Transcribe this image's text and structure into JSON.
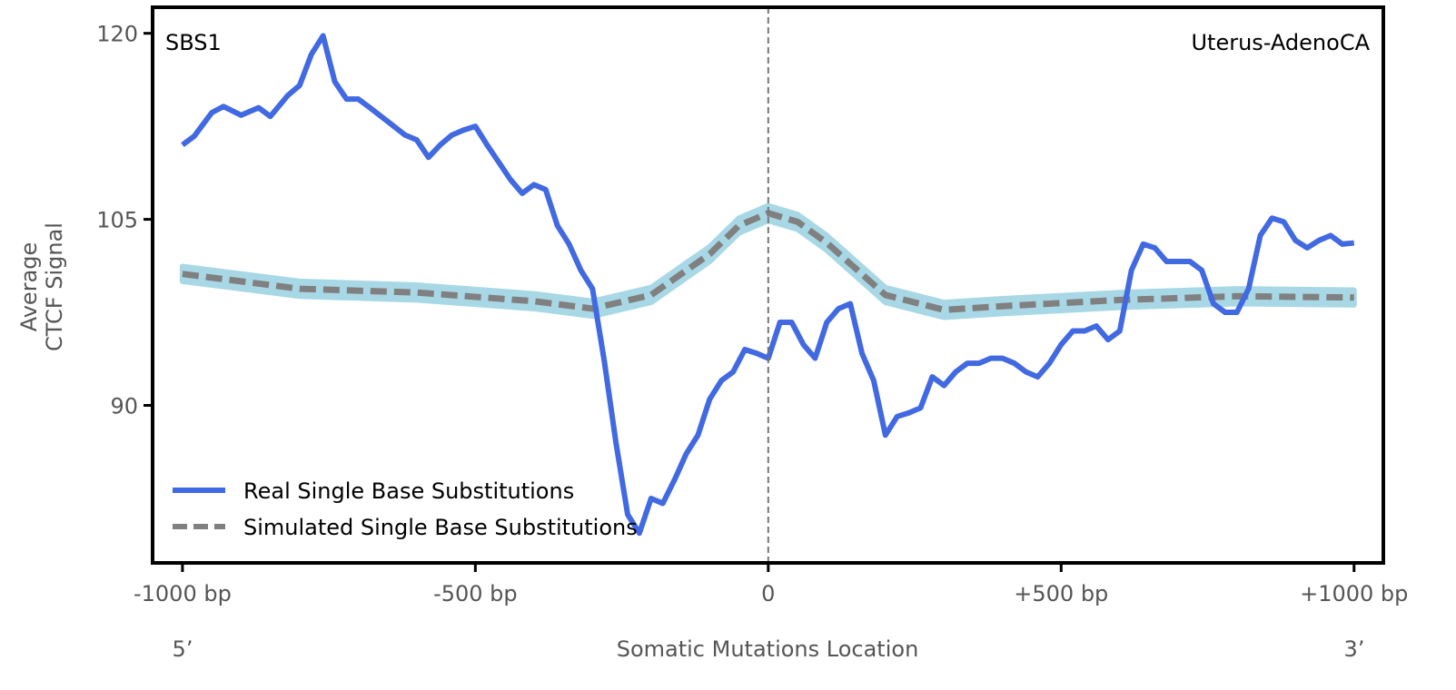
{
  "chart_data": {
    "type": "line",
    "panel_label": "SBS1",
    "cancer_type": "Uterus-AdenoCA",
    "xlabel": "Somatic Mutations Location",
    "ylabel_lines": [
      "Average",
      "CTCF Signal"
    ],
    "five_prime": "5’",
    "three_prime": "3’",
    "xlim": [
      -1051,
      1050
    ],
    "ylim": [
      77.3,
      122.1
    ],
    "xticks": [
      {
        "value": -1000,
        "label": "-1000 bp"
      },
      {
        "value": -500,
        "label": "-500 bp"
      },
      {
        "value": 0,
        "label": "0"
      },
      {
        "value": 500,
        "label": "+500 bp"
      },
      {
        "value": 1000,
        "label": "+1000 bp"
      }
    ],
    "yticks": [
      {
        "value": 90,
        "label": "90"
      },
      {
        "value": 105,
        "label": "105"
      },
      {
        "value": 120,
        "label": "120"
      }
    ],
    "center_line": 0,
    "legend_position": "bottom-left",
    "series": [
      {
        "name": "Real Single Base Substitutions",
        "color": "#4169e1",
        "style": "solid",
        "x": [
          -1000,
          -980,
          -950,
          -930,
          -900,
          -870,
          -850,
          -820,
          -800,
          -780,
          -760,
          -740,
          -720,
          -700,
          -680,
          -650,
          -620,
          -600,
          -580,
          -560,
          -540,
          -520,
          -500,
          -480,
          -460,
          -440,
          -420,
          -400,
          -380,
          -360,
          -340,
          -320,
          -300,
          -280,
          -260,
          -240,
          -220,
          -200,
          -180,
          -160,
          -140,
          -120,
          -100,
          -80,
          -60,
          -40,
          -20,
          0,
          20,
          40,
          60,
          80,
          100,
          120,
          140,
          160,
          180,
          200,
          220,
          240,
          260,
          280,
          300,
          320,
          340,
          360,
          380,
          400,
          420,
          440,
          460,
          480,
          500,
          520,
          540,
          560,
          580,
          600,
          620,
          640,
          660,
          680,
          700,
          720,
          740,
          760,
          780,
          800,
          820,
          840,
          860,
          880,
          900,
          920,
          940,
          960,
          980,
          1000
        ],
        "y": [
          111.0,
          111.7,
          113.6,
          114.1,
          113.4,
          114.0,
          113.3,
          115.0,
          115.8,
          118.3,
          119.8,
          116.1,
          114.7,
          114.7,
          114.0,
          112.9,
          111.8,
          111.4,
          110.0,
          111.0,
          111.8,
          112.2,
          112.5,
          111.0,
          109.6,
          108.2,
          107.1,
          107.8,
          107.4,
          104.5,
          103.0,
          100.9,
          99.4,
          93.6,
          87.0,
          81.2,
          79.7,
          82.5,
          82.1,
          84.0,
          86.1,
          87.6,
          90.5,
          92.0,
          92.7,
          94.5,
          94.2,
          93.8,
          96.7,
          96.7,
          94.9,
          93.8,
          96.7,
          97.8,
          98.2,
          94.2,
          92.0,
          87.6,
          89.1,
          89.4,
          89.8,
          92.3,
          91.6,
          92.7,
          93.4,
          93.4,
          93.8,
          93.8,
          93.4,
          92.7,
          92.3,
          93.4,
          94.9,
          96.0,
          96.0,
          96.4,
          95.3,
          96.0,
          100.9,
          103.0,
          102.7,
          101.6,
          101.6,
          101.6,
          100.9,
          98.2,
          97.5,
          97.5,
          99.4,
          103.7,
          105.1,
          104.8,
          103.3,
          102.7,
          103.3,
          103.7,
          103.0,
          103.1
        ]
      },
      {
        "name": "Simulated Single Base Substitutions",
        "color": "#808080",
        "band_color": "#a8d8e6",
        "style": "dashed",
        "band_halfwidth": 0.6,
        "x": [
          -1000,
          -800,
          -600,
          -400,
          -300,
          -200,
          -100,
          -50,
          0,
          50,
          100,
          200,
          300,
          400,
          600,
          800,
          1000
        ],
        "y": [
          100.6,
          99.4,
          99.1,
          98.4,
          97.8,
          98.9,
          102.2,
          104.5,
          105.5,
          104.8,
          103.1,
          98.9,
          97.7,
          98.0,
          98.5,
          98.8,
          98.7
        ]
      }
    ]
  }
}
